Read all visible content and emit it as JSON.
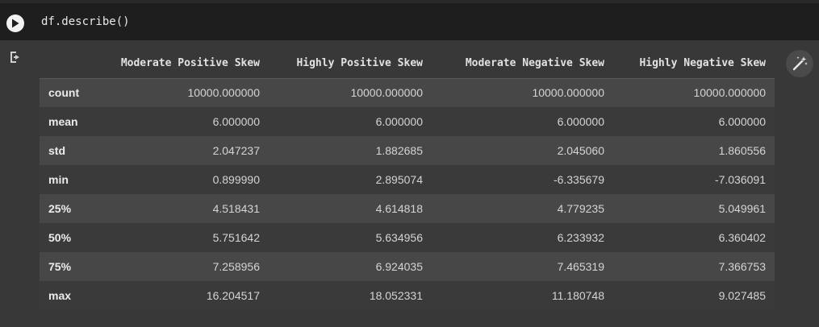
{
  "code_cell": {
    "source": "df.describe()",
    "run_icon": "play-icon"
  },
  "output": {
    "output_icon": "output-arrow-icon",
    "magic_icon": "magic-wand-icon",
    "table": {
      "columns": [
        "Moderate Positive Skew",
        "Highly Positive Skew",
        "Moderate Negative Skew",
        "Highly Negative Skew"
      ],
      "rows": [
        {
          "label": "count",
          "values": [
            "10000.000000",
            "10000.000000",
            "10000.000000",
            "10000.000000"
          ]
        },
        {
          "label": "mean",
          "values": [
            "6.000000",
            "6.000000",
            "6.000000",
            "6.000000"
          ]
        },
        {
          "label": "std",
          "values": [
            "2.047237",
            "1.882685",
            "2.045060",
            "1.860556"
          ]
        },
        {
          "label": "min",
          "values": [
            "0.899990",
            "2.895074",
            "-6.335679",
            "-7.036091"
          ]
        },
        {
          "label": "25%",
          "values": [
            "4.518431",
            "4.614818",
            "4.779235",
            "5.049961"
          ]
        },
        {
          "label": "50%",
          "values": [
            "5.751642",
            "5.634956",
            "6.233932",
            "6.360402"
          ]
        },
        {
          "label": "75%",
          "values": [
            "7.258956",
            "6.924035",
            "7.465319",
            "7.366753"
          ]
        },
        {
          "label": "max",
          "values": [
            "16.204517",
            "18.052331",
            "11.180748",
            "9.027485"
          ]
        }
      ]
    }
  },
  "colors": {
    "background": "#383838",
    "code_background": "#1e1e1e",
    "row_striped": "#474747",
    "row_plain": "#3a3a3a"
  }
}
